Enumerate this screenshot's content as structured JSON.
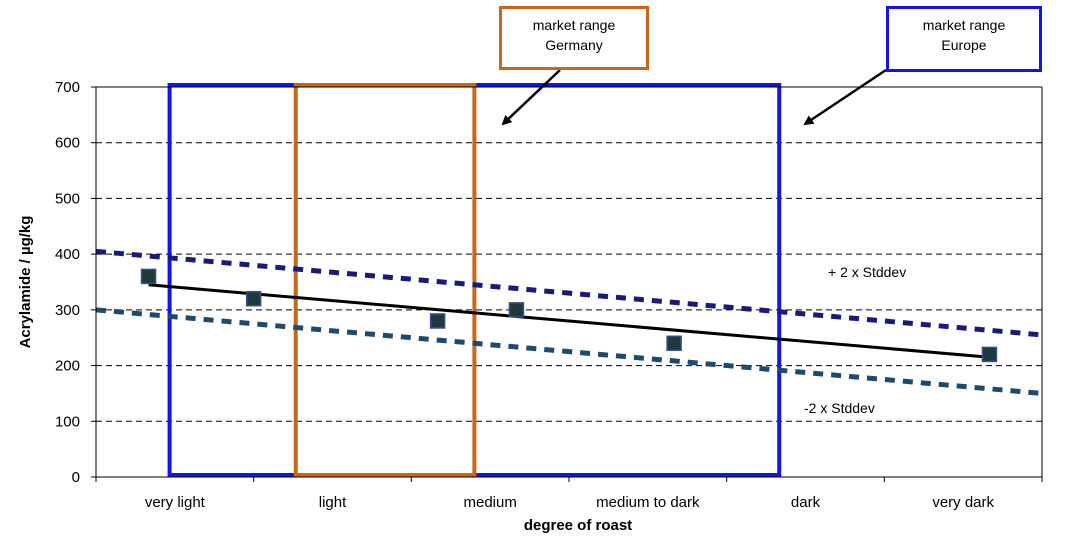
{
  "chart_data": {
    "type": "scatter",
    "xlabel": "degree of roast",
    "ylabel": "Acrylamide / µg/kg",
    "categories": [
      "very light",
      "light",
      "medium",
      "medium to dark",
      "dark",
      "very dark"
    ],
    "ylim": [
      0,
      700
    ],
    "yticks": [
      0,
      100,
      200,
      300,
      400,
      500,
      600,
      700
    ],
    "grid": "horizontal dashed",
    "points": [
      {
        "x": 0.5,
        "y": 360
      },
      {
        "x": 1.5,
        "y": 320
      },
      {
        "x": 3.25,
        "y": 280
      },
      {
        "x": 4.0,
        "y": 300
      },
      {
        "x": 5.5,
        "y": 240
      },
      {
        "x": 8.5,
        "y": 220
      }
    ],
    "regression": {
      "x": [
        0.5,
        8.5
      ],
      "y": [
        345,
        215
      ]
    },
    "upper_band": {
      "x": [
        0,
        9.0
      ],
      "y": [
        405,
        255
      ]
    },
    "lower_band": {
      "x": [
        0,
        9.0
      ],
      "y": [
        300,
        150
      ]
    },
    "annotations": [
      "+ 2 x Stddev",
      "-2 x Stddev"
    ],
    "ranges": [
      {
        "name": "market range Europe",
        "x": [
          0.7,
          6.5
        ],
        "y": [
          0,
          700
        ],
        "color": "#1414e6"
      },
      {
        "name": "market range Germany",
        "x": [
          1.9,
          3.6
        ],
        "y": [
          0,
          700
        ],
        "color": "#c8661a"
      }
    ]
  },
  "callouts": {
    "germany": {
      "line1": "market range",
      "line2": "Germany"
    },
    "europe": {
      "line1": "market range",
      "line2": "Europe"
    }
  }
}
